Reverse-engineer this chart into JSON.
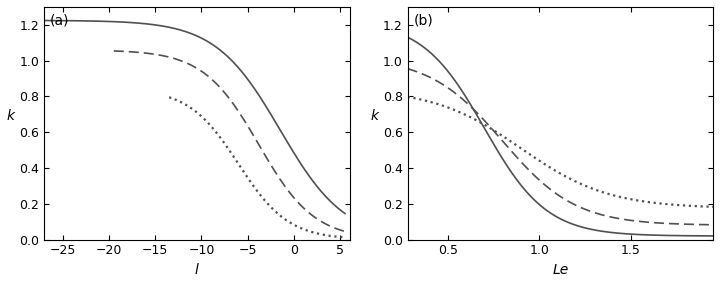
{
  "panel_a": {
    "xlabel": "l",
    "ylabel": "k",
    "xlim": [
      -27,
      6
    ],
    "ylim": [
      0,
      1.3
    ],
    "xticks": [
      -25,
      -20,
      -15,
      -10,
      -5,
      0,
      5
    ],
    "yticks": [
      0,
      0.2,
      0.4,
      0.6,
      0.8,
      1.0,
      1.2
    ],
    "label": "(a)"
  },
  "panel_b": {
    "xlabel": "Le",
    "ylabel": "k",
    "xlim": [
      0.28,
      1.95
    ],
    "ylim": [
      0,
      1.3
    ],
    "xticks": [
      0.5,
      1.0,
      1.5
    ],
    "yticks": [
      0,
      0.2,
      0.4,
      0.6,
      0.8,
      1.0,
      1.2
    ],
    "label": "(b)"
  },
  "line_color": "#505050",
  "line_width": 1.2
}
